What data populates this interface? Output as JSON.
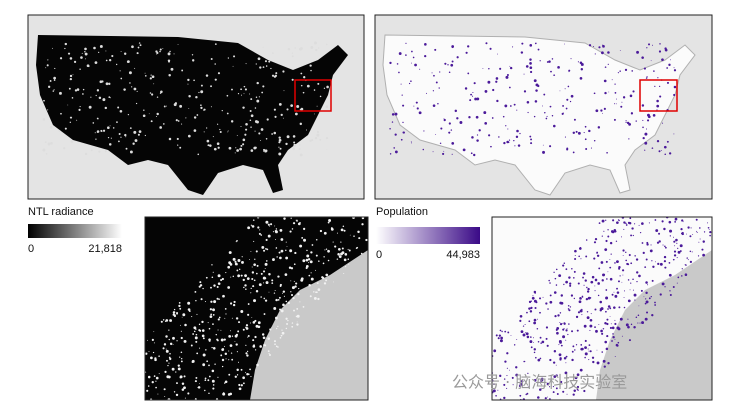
{
  "ntl_legend": {
    "title": "NTL radiance",
    "min": "0",
    "max": "21,818"
  },
  "population_legend": {
    "title": "Population",
    "min": "0",
    "max": "44,983"
  },
  "watermark": "公众号 · 脑海科技实验室"
}
